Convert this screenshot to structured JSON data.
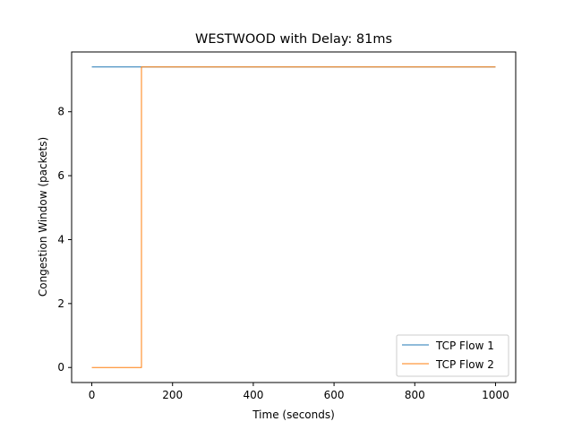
{
  "chart_data": {
    "type": "line",
    "title": "WESTWOOD with Delay: 81ms",
    "xlabel": "Time (seconds)",
    "ylabel": "Congestion Window (packets)",
    "xlim": [
      -50,
      1050
    ],
    "ylim": [
      -0.47,
      9.87
    ],
    "xticks": [
      0,
      200,
      400,
      600,
      800,
      1000
    ],
    "yticks": [
      0,
      2,
      4,
      6,
      8
    ],
    "grid": false,
    "legend_position": "lower-right",
    "series": [
      {
        "name": "TCP Flow 1",
        "color": "#1f77b4",
        "x": [
          0,
          1000
        ],
        "y": [
          9.4,
          9.4
        ]
      },
      {
        "name": "TCP Flow 2",
        "color": "#ff7f0e",
        "x": [
          0,
          123,
          123,
          1000
        ],
        "y": [
          0,
          0,
          9.4,
          9.4
        ]
      }
    ]
  }
}
